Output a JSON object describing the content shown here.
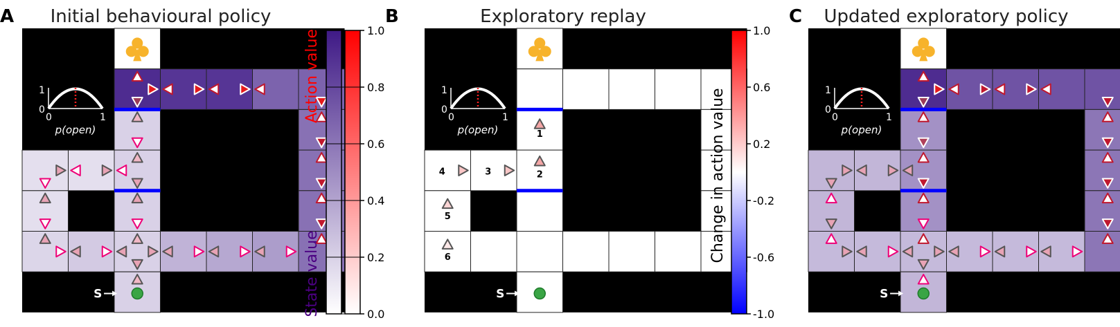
{
  "panels": [
    {
      "letter": "A",
      "title": "Initial behavioural policy"
    },
    {
      "letter": "B",
      "title": "Exploratory replay"
    },
    {
      "letter": "C",
      "title": "Updated exploratory policy"
    }
  ],
  "inset": {
    "y_ticks": [
      "1",
      "0"
    ],
    "x_ticks": [
      "0",
      "1"
    ],
    "xlabel": "p(open)"
  },
  "start_label": "S",
  "goal_icon": "club-icon",
  "replay_steps": [
    "1",
    "2",
    "3",
    "4",
    "5",
    "6"
  ],
  "colorbar_a": {
    "ticks": [
      "1.0",
      "0.8",
      "0.6",
      "0.4",
      "0.2",
      "0.0"
    ],
    "label_action": "Action value",
    "label_state": "State value"
  },
  "colorbar_b": {
    "ticks": [
      "1.0",
      "0.6",
      "0.2",
      "-0.2",
      "-0.6",
      "-1.0"
    ],
    "label": "Change in action value"
  },
  "colors": {
    "action_label": "#ff0000",
    "state_label": "#4b0082",
    "barrier": "#0000ff",
    "start": "#3aa545",
    "goal": "#f7b32b"
  }
}
